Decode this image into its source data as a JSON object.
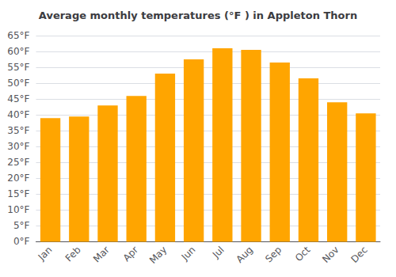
{
  "chart_data": {
    "type": "bar",
    "title": "Average monthly temperatures (°F ) in Appleton Thorn",
    "categories": [
      "Jan",
      "Feb",
      "Mar",
      "Apr",
      "May",
      "Jun",
      "Jul",
      "Aug",
      "Sep",
      "Oct",
      "Nov",
      "Dec"
    ],
    "values": [
      39.0,
      39.5,
      43.0,
      46.0,
      53.0,
      57.5,
      61.0,
      60.5,
      56.5,
      51.5,
      44.0,
      40.5
    ],
    "color": "#FFA500",
    "ylim": [
      0,
      65
    ],
    "yticks": [
      {
        "value": 0,
        "label": "0°F"
      },
      {
        "value": 5,
        "label": "5°F"
      },
      {
        "value": 10,
        "label": "10°F"
      },
      {
        "value": 15,
        "label": "15°F"
      },
      {
        "value": 20,
        "label": "20°F"
      },
      {
        "value": 25,
        "label": "25°F"
      },
      {
        "value": 30,
        "label": "30°F"
      },
      {
        "value": 35,
        "label": "35°F"
      },
      {
        "value": 40,
        "label": "40°F"
      },
      {
        "value": 45,
        "label": "45°F"
      },
      {
        "value": 50,
        "label": "50°F"
      },
      {
        "value": 55,
        "label": "55°F"
      },
      {
        "value": 60,
        "label": "60°F"
      },
      {
        "value": 65,
        "label": "65°F"
      }
    ],
    "grid": true
  }
}
